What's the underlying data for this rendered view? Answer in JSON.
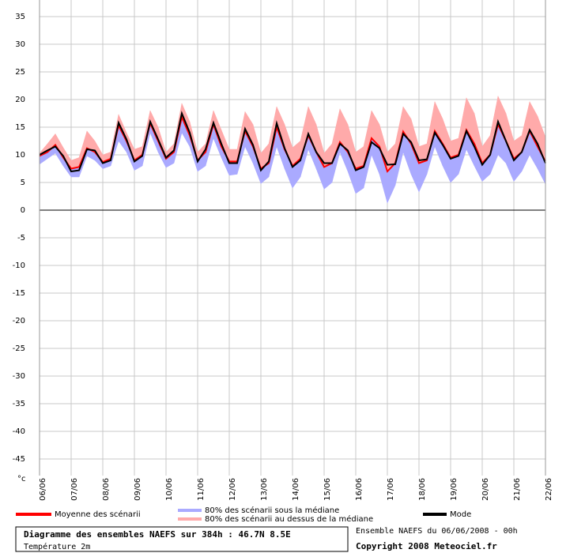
{
  "chart_data": {
    "type": "line",
    "ylabel": "°c",
    "categories": [
      "06/06",
      null,
      null,
      null,
      "07/06",
      null,
      null,
      null,
      "08/06",
      null,
      null,
      null,
      "09/06",
      null,
      null,
      null,
      "10/06",
      null,
      null,
      null,
      "11/06",
      null,
      null,
      null,
      "12/06",
      null,
      null,
      null,
      "13/06",
      null,
      null,
      null,
      "14/06",
      null,
      null,
      null,
      "15/06",
      null,
      null,
      null,
      "16/06",
      null,
      null,
      null,
      "17/06",
      null,
      null,
      null,
      "18/06",
      null,
      null,
      null,
      "19/06",
      null,
      null,
      null,
      "20/06",
      null,
      null,
      null,
      "21/06",
      null,
      null,
      null,
      "22/06"
    ],
    "series": [
      {
        "name": "Moyenne des scénarii",
        "color": "#ff0000",
        "values": [
          9.8,
          10.5,
          11.8,
          9.5,
          7.5,
          7.8,
          11.2,
          10.5,
          8.7,
          9.3,
          15.3,
          12.5,
          9,
          10,
          15.7,
          12.5,
          9.3,
          10.5,
          16.8,
          13.5,
          9,
          10.5,
          15.5,
          11.5,
          8.8,
          8.8,
          14.3,
          11.5,
          7.5,
          8.5,
          15,
          11,
          8,
          9.3,
          13.5,
          10.5,
          7.8,
          8.5,
          12.3,
          10.5,
          7.5,
          8,
          13,
          11.5,
          7,
          8.5,
          14.2,
          12,
          8.5,
          9,
          14.3,
          12,
          9.5,
          10,
          14.5,
          12,
          8.5,
          10,
          15.5,
          12.5,
          9.3,
          10.5,
          14.3,
          11.5,
          8.8
        ]
      },
      {
        "name": "80% des scénarii sous la médiane",
        "color": "#aaaaff",
        "band": "lower",
        "values": [
          8.3,
          9.3,
          10.3,
          8,
          6,
          6,
          9.8,
          9,
          7.5,
          8,
          12.5,
          10.5,
          7.2,
          8,
          14,
          10.5,
          7.7,
          8.5,
          14,
          11.5,
          7,
          8,
          13,
          9.5,
          6.3,
          6.5,
          11.5,
          8.5,
          4.8,
          6,
          11.5,
          7.5,
          4,
          6,
          11,
          7.5,
          3.8,
          5,
          10.5,
          7,
          3,
          4,
          10,
          6.5,
          1.3,
          4.5,
          10.5,
          6.5,
          3.3,
          6.5,
          11.5,
          8,
          5,
          6.5,
          11,
          8,
          5.2,
          6.5,
          10,
          8.5,
          5.2,
          7,
          10,
          7.5,
          4.7
        ]
      },
      {
        "name": "80% des scénarii au dessus de la médiane",
        "color": "#ffaaaa",
        "band": "upper",
        "values": [
          10.3,
          12,
          13.8,
          11.3,
          9,
          9.5,
          14.3,
          12.5,
          10,
          10.5,
          17.3,
          14,
          11,
          11.5,
          18,
          15,
          10.5,
          12,
          19.3,
          16,
          10.5,
          12,
          18,
          14.5,
          11,
          11,
          17.8,
          15.5,
          10.3,
          12,
          18.7,
          15.5,
          11.3,
          12.5,
          18.7,
          15.5,
          10.3,
          12,
          18.3,
          15.5,
          10.5,
          11.5,
          18,
          15.5,
          10.5,
          12,
          18.7,
          16.5,
          11.5,
          12,
          19.6,
          16.5,
          12.5,
          13,
          20.3,
          17.5,
          11.5,
          13.5,
          20.6,
          17.5,
          12.5,
          13.5,
          19.6,
          17,
          13.2
        ]
      },
      {
        "name": "Mode",
        "color": "#000000",
        "values": [
          10,
          10.8,
          11.5,
          9.8,
          7,
          7.2,
          11,
          10.8,
          8.5,
          9,
          15.8,
          12.8,
          8.8,
          9.8,
          16,
          12.8,
          9.5,
          10.8,
          17.5,
          14,
          8.8,
          11,
          15.8,
          12,
          8.5,
          8.5,
          14.7,
          11.8,
          7.2,
          8.8,
          15.7,
          11.2,
          7.8,
          9,
          13.8,
          10.5,
          8.5,
          8.5,
          12,
          10.8,
          7.2,
          7.8,
          12.3,
          11.2,
          8.2,
          8.3,
          13.8,
          12.3,
          9,
          9.2,
          14,
          11.8,
          9.3,
          9.8,
          14.3,
          11.5,
          8.2,
          10,
          16,
          12.5,
          9,
          10.5,
          14.5,
          12,
          8.5
        ]
      }
    ],
    "ylim": [
      -48,
      38
    ],
    "yticks": [
      -45,
      -40,
      -35,
      -30,
      -25,
      -20,
      -15,
      -10,
      -5,
      0,
      5,
      10,
      15,
      20,
      25,
      30,
      35
    ],
    "grid": true
  },
  "footer": {
    "title": "Diagramme des ensembles NAEFS sur 384h : 46.7N 8.5E",
    "subtitle": "Température 2m",
    "run": "Ensemble NAEFS du 06/06/2008 - 00h",
    "copyright": "Copyright 2008 Meteociel.fr"
  }
}
